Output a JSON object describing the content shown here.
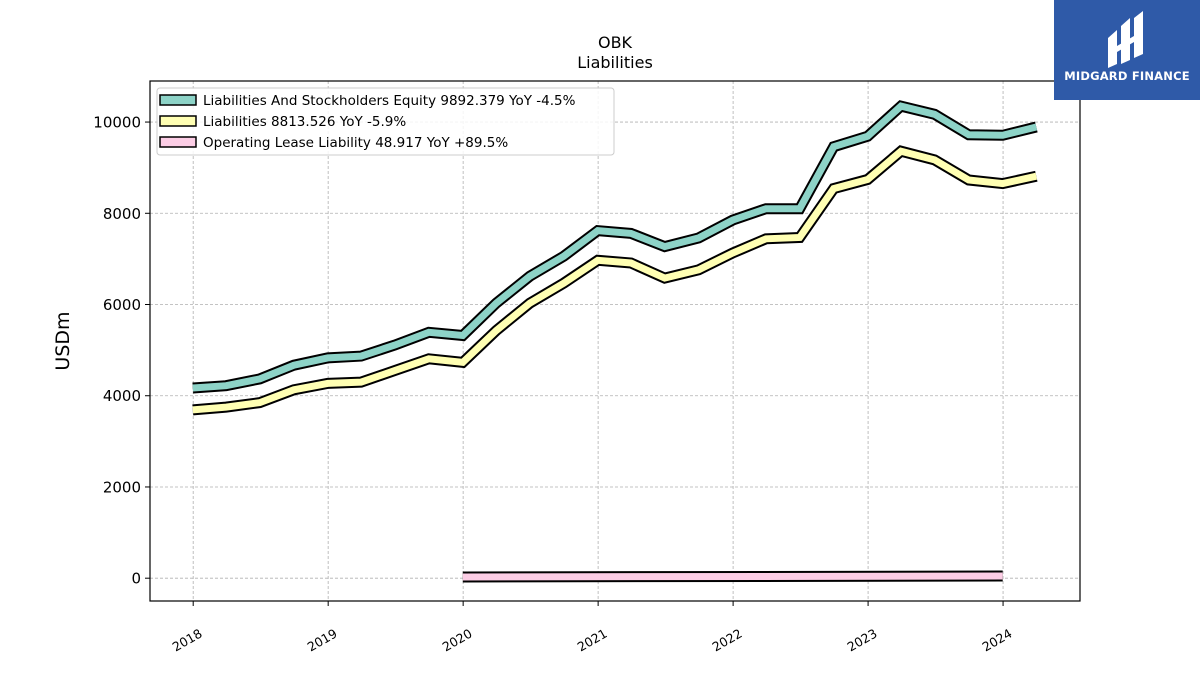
{
  "chart_data": {
    "type": "line",
    "title": "OBK",
    "subtitle": "Liabilities",
    "ylabel": "USDm",
    "xlabel": "",
    "ylim": [
      -500,
      10900
    ],
    "xlim": [
      2017.68,
      2024.57
    ],
    "yticks": [
      0,
      2000,
      4000,
      6000,
      8000,
      10000
    ],
    "xticks": [
      2018,
      2019,
      2020,
      2021,
      2022,
      2023,
      2024
    ],
    "grid": true,
    "legend_position": "top-left",
    "series": [
      {
        "name": "Liabilities And Stockholders Equity",
        "legend": "Liabilities And Stockholders Equity  9892.379 YoY -4.5%",
        "color": "#8dd3c7",
        "x": [
          "2017-12-31",
          "2018-03-31",
          "2018-06-30",
          "2018-09-30",
          "2018-12-31",
          "2019-03-31",
          "2019-06-30",
          "2019-09-30",
          "2019-12-31",
          "2020-03-31",
          "2020-06-30",
          "2020-09-30",
          "2020-12-31",
          "2021-03-31",
          "2021-06-30",
          "2021-09-30",
          "2021-12-31",
          "2022-03-31",
          "2022-06-30",
          "2022-09-30",
          "2022-12-31",
          "2023-03-31",
          "2023-06-30",
          "2023-09-30",
          "2023-12-31",
          "2024-03-31"
        ],
        "values": [
          4170,
          4220,
          4370,
          4670,
          4830,
          4870,
          5110,
          5390,
          5320,
          6030,
          6620,
          7060,
          7620,
          7560,
          7270,
          7460,
          7850,
          8100,
          8100,
          9460,
          9690,
          10350,
          10170,
          9720,
          9710,
          9892.379
        ]
      },
      {
        "name": "Liabilities",
        "legend": "Liabilities  8813.526 YoY -5.9%",
        "color": "#ffffb3",
        "x": [
          "2017-12-31",
          "2018-03-31",
          "2018-06-30",
          "2018-09-30",
          "2018-12-31",
          "2019-03-31",
          "2019-06-30",
          "2019-09-30",
          "2019-12-31",
          "2020-03-31",
          "2020-06-30",
          "2020-09-30",
          "2020-12-31",
          "2021-03-31",
          "2021-06-30",
          "2021-09-30",
          "2021-12-31",
          "2022-03-31",
          "2022-06-30",
          "2022-09-30",
          "2022-12-31",
          "2023-03-31",
          "2023-06-30",
          "2023-09-30",
          "2023-12-31",
          "2024-03-31"
        ],
        "values": [
          3690,
          3750,
          3850,
          4130,
          4270,
          4300,
          4550,
          4810,
          4730,
          5430,
          6030,
          6470,
          6970,
          6910,
          6580,
          6760,
          7130,
          7440,
          7470,
          8540,
          8740,
          9360,
          9170,
          8730,
          8650,
          8813.526
        ]
      },
      {
        "name": "Operating Lease Liability",
        "legend": "Operating Lease Liability  48.917 YoY +89.5%",
        "color": "#fccde5",
        "x": [
          "2019-12-31",
          "2023-12-31"
        ],
        "values": [
          25.8,
          48.917
        ]
      }
    ]
  },
  "logo": {
    "text": "MIDGARD FINANCE",
    "background": "#2f5aa8"
  }
}
